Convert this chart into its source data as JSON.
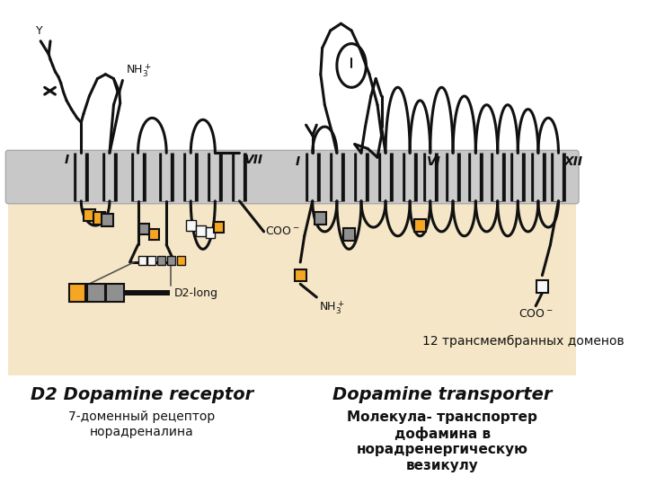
{
  "bg_color": "#ffffff",
  "membrane_color": "#c8c8c8",
  "membrane_inner_color": "#f5e6c8",
  "title_left": "D2 Dopamine receptor",
  "title_right": "Dopamine transporter",
  "subtitle_left": "7-доменный рецептор\nнорадреналина",
  "subtitle_right": "Молекула- транспортер\nдофамина в\nнорадренергическую\nвезикулу",
  "label_12": "12 трансмембранных доменов",
  "orange": "#f5a623",
  "gray": "#909090",
  "white_box": "#f8f8f8",
  "line_color": "#111111",
  "line_width": 2.2
}
